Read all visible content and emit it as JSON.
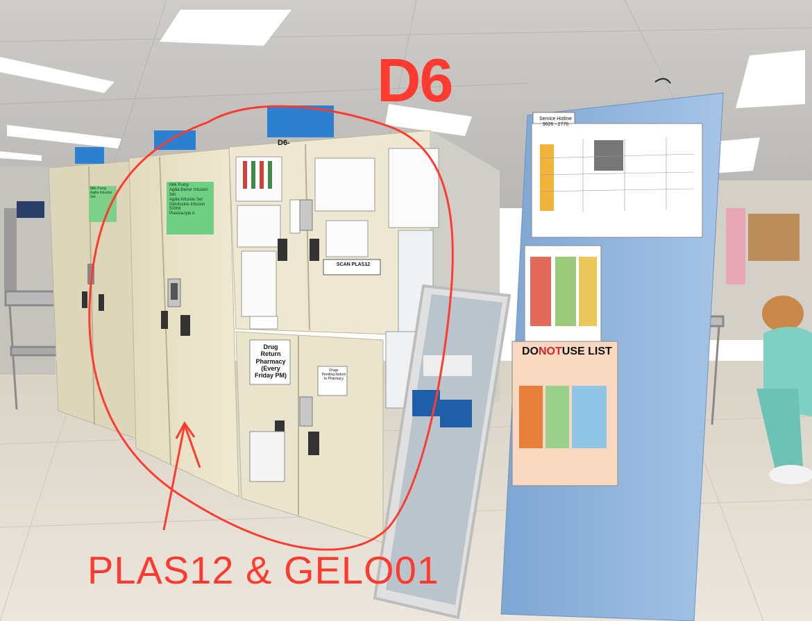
{
  "annotations": {
    "title": "D6",
    "caption": "PLAS12 & GELO01",
    "color": "#ff3b2f"
  },
  "labels": {
    "cabinet_tag": "D6-",
    "green_label": "Milk Pump\nAgilia Barrer Infusion Set\nAgilia Infusion Set\nGelofusine Infusion 500ml\nPlasma-lyte A",
    "green_label_small": "Milk Pump\nAgilia Infusion Set",
    "drug_return": "Drug Return\nPharmacy\n(Every Friday PM)",
    "drugs_pending": "Drugs\nPending Return\nto Pharmacy",
    "scan_label": "SCAN PLAS12",
    "service_hotline": "Service Hotline\n9626 - 2776",
    "do_not_use_prefix": "DO",
    "do_not_use_red": "NOT",
    "do_not_use_suffix": "USE LIST"
  },
  "colors": {
    "cabinet": "#e9e2c6",
    "floor": "#e4ddd2",
    "blue_board": "#8fb4dd",
    "ceiling": "#d8d6d2",
    "annotation": "#ff3b2f"
  }
}
